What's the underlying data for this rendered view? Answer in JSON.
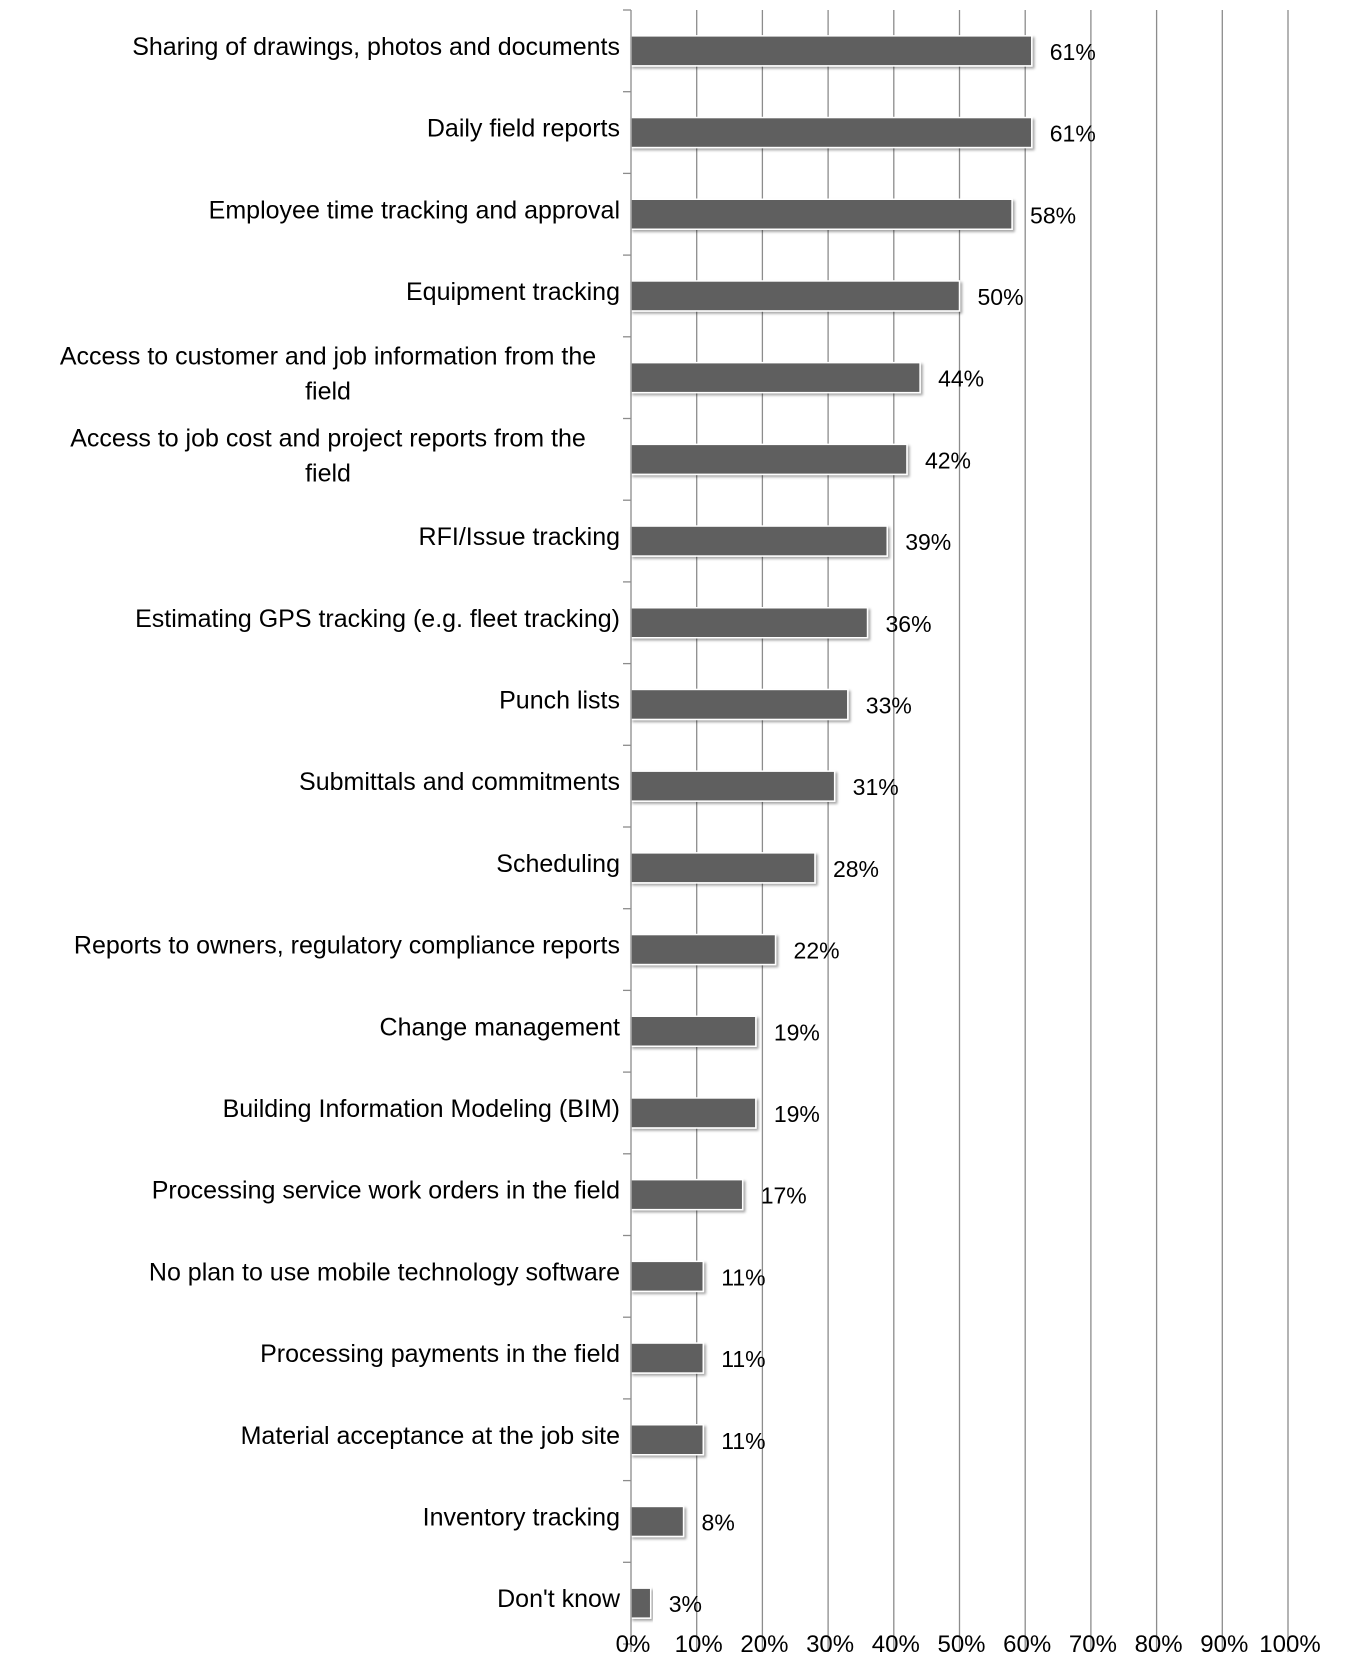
{
  "chart_data": {
    "type": "bar",
    "orientation": "horizontal",
    "categories": [
      "Sharing of drawings, photos and documents",
      "Daily field reports",
      "Employee time tracking and approval",
      "Equipment tracking",
      "Access to customer and job information from the field",
      "Access to job cost and project reports from the field",
      "RFI/Issue tracking",
      "Estimating GPS tracking (e.g. fleet tracking)",
      "Punch lists",
      "Submittals and commitments",
      "Scheduling",
      "Reports to owners, regulatory compliance reports",
      "Change management",
      "Building Information Modeling (BIM)",
      "Processing service work orders in the field",
      "No plan to use mobile technology software",
      "Processing payments in the field",
      "Material acceptance at the job site",
      "Inventory tracking",
      "Don't know"
    ],
    "values": [
      61,
      61,
      58,
      50,
      44,
      42,
      39,
      36,
      33,
      31,
      28,
      22,
      19,
      19,
      17,
      11,
      11,
      11,
      8,
      3
    ],
    "value_labels": [
      "61%",
      "61%",
      "58%",
      "50%",
      "44%",
      "42%",
      "39%",
      "36%",
      "33%",
      "31%",
      "28%",
      "22%",
      "19%",
      "19%",
      "17%",
      "11%",
      "11%",
      "11%",
      "8%",
      "3%"
    ],
    "x_ticks": [
      "0%",
      "10%",
      "20%",
      "30%",
      "40%",
      "50%",
      "60%",
      "70%",
      "80%",
      "90%",
      "100%"
    ],
    "xlim": [
      0,
      100
    ],
    "grid": true,
    "bar_color": "#5f5f5f",
    "grid_color": "#8c8c8c",
    "title": "",
    "xlabel": "",
    "ylabel": ""
  }
}
